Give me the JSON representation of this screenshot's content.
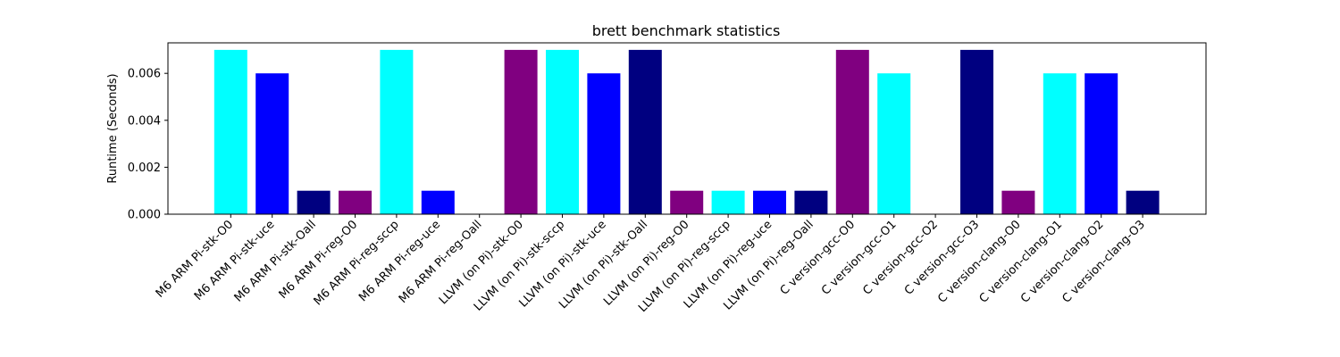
{
  "chart_data": {
    "type": "bar",
    "title": "brett benchmark statistics",
    "xlabel": "",
    "ylabel": "Runtime (Seconds)",
    "ylim": [
      0,
      0.0073
    ],
    "yticks": [
      0.0,
      0.002,
      0.004,
      0.006
    ],
    "ytick_labels": [
      "0.000",
      "0.002",
      "0.004",
      "0.006"
    ],
    "grid": false,
    "categories": [
      "M6 ARM Pi-stk-O0",
      "M6 ARM Pi-stk-uce",
      "M6 ARM Pi-stk-Oall",
      "M6 ARM Pi-reg-O0",
      "M6 ARM Pi-reg-sccp",
      "M6 ARM Pi-reg-uce",
      "M6 ARM Pi-reg-Oall",
      "LLVM (on Pi)-stk-O0",
      "LLVM (on Pi)-stk-sccp",
      "LLVM (on Pi)-stk-uce",
      "LLVM (on Pi)-stk-Oall",
      "LLVM (on Pi)-reg-O0",
      "LLVM (on Pi)-reg-sccp",
      "LLVM (on Pi)-reg-uce",
      "LLVM (on Pi)-reg-Oall",
      "C version-gcc-O0",
      "C version-gcc-O1",
      "C version-gcc-O2",
      "C version-gcc-O3",
      "C version-clang-O0",
      "C version-clang-O1",
      "C version-clang-O2",
      "C version-clang-O3"
    ],
    "values": [
      0.007,
      0.006,
      0.001,
      0.001,
      0.007,
      0.001,
      0.0,
      0.007,
      0.007,
      0.006,
      0.007,
      0.001,
      0.001,
      0.001,
      0.001,
      0.007,
      0.006,
      0.0,
      0.007,
      0.001,
      0.006,
      0.006,
      0.001
    ],
    "colors": [
      "#00ffff",
      "#0000ff",
      "#000080",
      "#800080",
      "#00ffff",
      "#0000ff",
      "#000080",
      "#800080",
      "#00ffff",
      "#0000ff",
      "#000080",
      "#800080",
      "#00ffff",
      "#0000ff",
      "#000080",
      "#800080",
      "#00ffff",
      "#0000ff",
      "#000080",
      "#800080",
      "#00ffff",
      "#0000ff",
      "#000080"
    ]
  }
}
